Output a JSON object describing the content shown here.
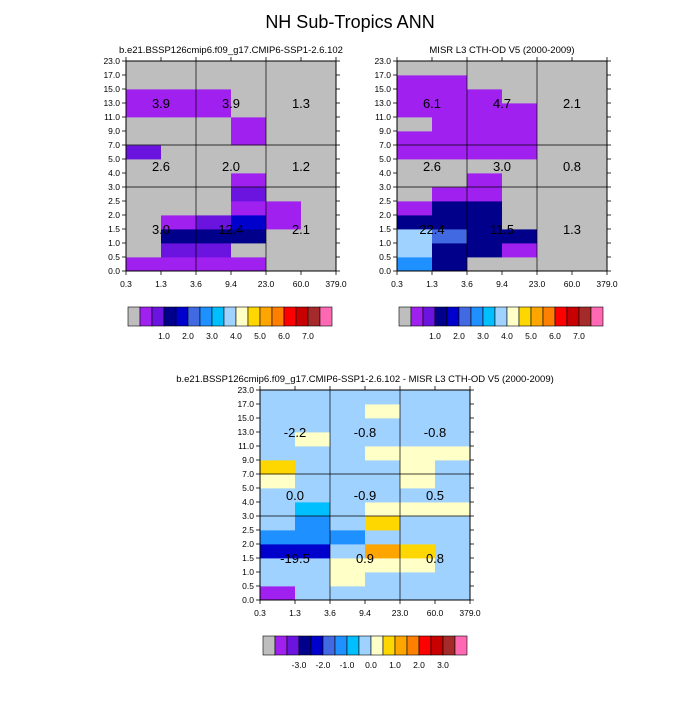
{
  "figure_title": "NH Sub-Tropics ANN",
  "chart_data": [
    {
      "type": "heatmap",
      "title": "b.e21.BSSP126cmip6.f09_g17.CMIP6-SSP1-2.6.102",
      "x_tick_labels": [
        "0.3",
        "1.3",
        "3.6",
        "9.4",
        "23.0",
        "60.0",
        "379.0"
      ],
      "y_tick_labels": [
        "0.0",
        "0.5",
        "1.0",
        "1.5",
        "2.0",
        "2.5",
        "3.0",
        "4.0",
        "5.0",
        "7.0",
        "9.0",
        "11.0",
        "13.0",
        "15.0",
        "17.0",
        "23.0"
      ],
      "bins": [
        0,
        0.1,
        1,
        2,
        3,
        4,
        5,
        6,
        7,
        8,
        9,
        10,
        11,
        12,
        13,
        14,
        15
      ],
      "bin_colors": [
        "#bebebe",
        "#a020f0",
        "#6b14e0",
        "#00008b",
        "#0000cd",
        "#4169e1",
        "#1e90ff",
        "#00bfff",
        "#a0d2ff",
        "#ffffc8",
        "#ffd700",
        "#ffa500",
        "#ff7f00",
        "#ff0000",
        "#c80000",
        "#a52a2a",
        "#ff69b4"
      ],
      "colorbar_labels": [
        "1.0",
        "2.0",
        "3.0",
        "4.0",
        "5.0",
        "6.0",
        "7.0"
      ],
      "cells": [
        [
          0.1,
          0.1,
          0.4,
          0.4,
          0,
          0
        ],
        [
          0,
          1.6,
          1.6,
          0,
          0,
          0
        ],
        [
          0,
          2.5,
          2.5,
          2.5,
          0,
          0
        ],
        [
          0,
          0.8,
          1.7,
          3.2,
          0.6,
          0
        ],
        [
          0,
          0,
          0,
          0.6,
          0.4,
          0
        ],
        [
          0,
          0,
          0,
          1.6,
          0,
          0
        ],
        [
          0,
          0,
          0,
          0.5,
          0,
          0
        ],
        [
          0,
          0,
          0,
          0,
          0,
          0
        ],
        [
          1.5,
          0,
          0,
          0,
          0,
          0
        ],
        [
          0,
          0,
          0,
          0.5,
          0,
          0
        ],
        [
          0,
          0,
          0,
          0.5,
          0,
          0
        ],
        [
          0.4,
          0.4,
          0.4,
          0,
          0,
          0
        ],
        [
          0.4,
          0.4,
          0.4,
          0,
          0,
          0
        ],
        [
          0,
          0,
          0,
          0,
          0,
          0
        ],
        [
          0,
          0,
          0,
          0,
          0,
          0
        ]
      ],
      "sums": [
        {
          "col": 0,
          "row": 0,
          "text": "3.0"
        },
        {
          "col": 1,
          "row": 0,
          "text": "12.4"
        },
        {
          "col": 2,
          "row": 0,
          "text": "2.1"
        },
        {
          "col": 0,
          "row": 1,
          "text": "2.6"
        },
        {
          "col": 1,
          "row": 1,
          "text": "2.0"
        },
        {
          "col": 2,
          "row": 1,
          "text": "1.2"
        },
        {
          "col": 0,
          "row": 2,
          "text": "3.9"
        },
        {
          "col": 1,
          "row": 2,
          "text": "3.9"
        },
        {
          "col": 2,
          "row": 2,
          "text": "1.3"
        }
      ]
    },
    {
      "type": "heatmap",
      "title": "MISR L3 CTH-OD V5 (2000-2009)",
      "x_tick_labels": [
        "0.3",
        "1.3",
        "3.6",
        "9.4",
        "23.0",
        "60.0",
        "379.0"
      ],
      "y_tick_labels": [
        "0.0",
        "0.5",
        "1.0",
        "1.5",
        "2.0",
        "2.5",
        "3.0",
        "4.0",
        "5.0",
        "7.0",
        "9.0",
        "11.0",
        "13.0",
        "15.0",
        "17.0",
        "23.0"
      ],
      "bins": [
        0,
        0.1,
        1,
        2,
        3,
        4,
        5,
        6,
        7,
        8,
        9,
        10,
        11,
        12,
        13,
        14,
        15
      ],
      "bin_colors": [
        "#bebebe",
        "#a020f0",
        "#6b14e0",
        "#00008b",
        "#0000cd",
        "#4169e1",
        "#1e90ff",
        "#00bfff",
        "#a0d2ff",
        "#ffffc8",
        "#ffd700",
        "#ffa500",
        "#ff7f00",
        "#ff0000",
        "#c80000",
        "#a52a2a",
        "#ff69b4"
      ],
      "colorbar_labels": [
        "1.0",
        "2.0",
        "3.0",
        "4.0",
        "5.0",
        "6.0",
        "7.0"
      ],
      "cells": [
        [
          5.2,
          2.5,
          0,
          0,
          0,
          0
        ],
        [
          7.8,
          2.5,
          2.1,
          0.7,
          0,
          0
        ],
        [
          7.8,
          4.1,
          2.5,
          2.5,
          0,
          0
        ],
        [
          2.4,
          2.5,
          2.5,
          0,
          0,
          0
        ],
        [
          0.6,
          2.1,
          2.1,
          0,
          0,
          0
        ],
        [
          0,
          0.6,
          0.6,
          0,
          0,
          0
        ],
        [
          0,
          0,
          0.6,
          0,
          0,
          0
        ],
        [
          0,
          0,
          0,
          0,
          0,
          0
        ],
        [
          0.6,
          0.6,
          0.6,
          0.6,
          0,
          0
        ],
        [
          0.5,
          0.5,
          0.5,
          0.5,
          0,
          0
        ],
        [
          0,
          0.5,
          0.5,
          0.5,
          0,
          0
        ],
        [
          0.6,
          0.6,
          0.6,
          0.6,
          0,
          0
        ],
        [
          0.6,
          0.6,
          0.6,
          0,
          0,
          0
        ],
        [
          0.6,
          0.6,
          0,
          0,
          0,
          0
        ],
        [
          0,
          0,
          0,
          0,
          0,
          0
        ]
      ],
      "sums": [
        {
          "col": 0,
          "row": 0,
          "text": "22.4"
        },
        {
          "col": 1,
          "row": 0,
          "text": "11.5"
        },
        {
          "col": 2,
          "row": 0,
          "text": "1.3"
        },
        {
          "col": 0,
          "row": 1,
          "text": "2.6"
        },
        {
          "col": 1,
          "row": 1,
          "text": "3.0"
        },
        {
          "col": 2,
          "row": 1,
          "text": "0.8"
        },
        {
          "col": 0,
          "row": 2,
          "text": "6.1"
        },
        {
          "col": 1,
          "row": 2,
          "text": "4.7"
        },
        {
          "col": 2,
          "row": 2,
          "text": "2.1"
        }
      ]
    },
    {
      "type": "heatmap",
      "title": "b.e21.BSSP126cmip6.f09_g17.CMIP6-SSP1-2.6.102 - MISR L3 CTH-OD V5 (2000-2009)",
      "x_tick_labels": [
        "0.3",
        "1.3",
        "3.6",
        "9.4",
        "23.0",
        "60.0",
        "379.0"
      ],
      "y_tick_labels": [
        "0.0",
        "0.5",
        "1.0",
        "1.5",
        "2.0",
        "2.5",
        "3.0",
        "4.0",
        "5.0",
        "7.0",
        "9.0",
        "11.0",
        "13.0",
        "15.0",
        "17.0",
        "23.0"
      ],
      "bins": [
        -100,
        -4,
        -3.5,
        -3,
        -2.5,
        -2,
        -1.5,
        -1,
        -0.5,
        0,
        0.5,
        1,
        1.5,
        2,
        2.5,
        3,
        3.5
      ],
      "bin_colors": [
        "#bebebe",
        "#a020f0",
        "#6b14e0",
        "#00008b",
        "#0000cd",
        "#4169e1",
        "#1e90ff",
        "#00bfff",
        "#a0d2ff",
        "#ffffc8",
        "#ffd700",
        "#ffa500",
        "#ff7f00",
        "#ff0000",
        "#c80000",
        "#a52a2a",
        "#ff69b4"
      ],
      "colorbar_labels": [
        "-3.0",
        "-2.0",
        "-1.0",
        "0.0",
        "1.0",
        "2.0",
        "3.0"
      ],
      "cells": [
        [
          -3.8,
          -0.2,
          -0.2,
          -0.2,
          -0.2,
          -0.2
        ],
        [
          -0.2,
          -0.2,
          0.2,
          -0.2,
          -0.2,
          -0.2
        ],
        [
          -0.2,
          -0.2,
          0.2,
          0.2,
          0.2,
          -0.2
        ],
        [
          -2.2,
          -2.2,
          -0.2,
          1.2,
          0.7,
          -0.2
        ],
        [
          -1.2,
          -1.2,
          -1.2,
          -0.2,
          -0.2,
          -0.2
        ],
        [
          -0.2,
          -1.2,
          -0.2,
          0.7,
          -0.2,
          -0.2
        ],
        [
          -0.2,
          -0.7,
          -0.2,
          0.2,
          0.2,
          0.2
        ],
        [
          -0.2,
          -0.2,
          -0.2,
          -0.2,
          -0.2,
          -0.2
        ],
        [
          0.2,
          -0.2,
          -0.2,
          -0.2,
          0.2,
          -0.2
        ],
        [
          0.9,
          -0.2,
          -0.2,
          -0.2,
          0.2,
          -0.2
        ],
        [
          -0.2,
          -0.2,
          -0.2,
          0.2,
          0.2,
          0.2
        ],
        [
          -0.2,
          0.2,
          -0.2,
          -0.2,
          -0.2,
          -0.2
        ],
        [
          -0.2,
          -0.2,
          -0.2,
          -0.2,
          -0.2,
          -0.2
        ],
        [
          -0.2,
          -0.2,
          -0.2,
          0.2,
          -0.2,
          -0.2
        ],
        [
          -0.2,
          -0.2,
          -0.2,
          -0.2,
          -0.2,
          -0.2
        ]
      ],
      "sums": [
        {
          "col": 0,
          "row": 0,
          "text": "-19.5"
        },
        {
          "col": 1,
          "row": 0,
          "text": "0.9"
        },
        {
          "col": 2,
          "row": 0,
          "text": "0.8"
        },
        {
          "col": 0,
          "row": 1,
          "text": "0.0"
        },
        {
          "col": 1,
          "row": 1,
          "text": "-0.9"
        },
        {
          "col": 2,
          "row": 1,
          "text": "0.5"
        },
        {
          "col": 0,
          "row": 2,
          "text": "-2.2"
        },
        {
          "col": 1,
          "row": 2,
          "text": "-0.8"
        },
        {
          "col": 2,
          "row": 2,
          "text": "-0.8"
        }
      ]
    }
  ]
}
